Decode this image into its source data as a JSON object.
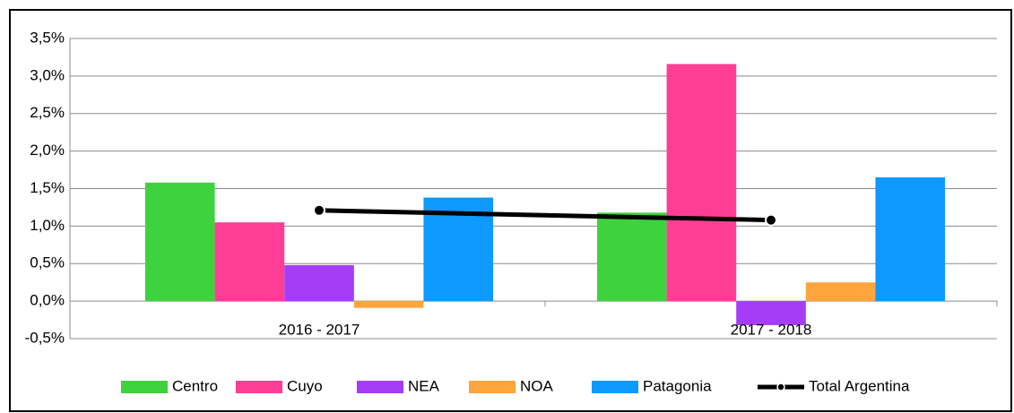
{
  "chart_data": {
    "type": "bar",
    "categories": [
      "2016 - 2017",
      "2017 - 2018"
    ],
    "series": [
      {
        "name": "Centro",
        "color": "#3ed23e",
        "values": [
          1.58,
          1.18
        ]
      },
      {
        "name": "Cuyo",
        "color": "#ff3d96",
        "values": [
          1.05,
          3.16
        ]
      },
      {
        "name": "NEA",
        "color": "#a43df5",
        "values": [
          0.48,
          -0.32
        ]
      },
      {
        "name": "NOA",
        "color": "#ffa53d",
        "values": [
          -0.09,
          0.25
        ]
      },
      {
        "name": "Patagonia",
        "color": "#0d99ff",
        "values": [
          1.38,
          1.65
        ]
      },
      {
        "name": "Total Argentina",
        "type": "line",
        "color": "#000000",
        "values": [
          1.21,
          1.08
        ]
      }
    ],
    "ylim": [
      -0.5,
      3.5
    ],
    "yticks": [
      {
        "value": -0.5,
        "label": "-0,5%"
      },
      {
        "value": 0,
        "label": "0,0%"
      },
      {
        "value": 0.5,
        "label": "0,5%"
      },
      {
        "value": 1,
        "label": "1,0%"
      },
      {
        "value": 1.5,
        "label": "1,5%"
      },
      {
        "value": 2,
        "label": "2,0%"
      },
      {
        "value": 2.5,
        "label": "2,5%"
      },
      {
        "value": 3,
        "label": "3,0%"
      },
      {
        "value": 3.5,
        "label": "3,5%"
      }
    ],
    "grid": true,
    "legend": "bottom"
  }
}
